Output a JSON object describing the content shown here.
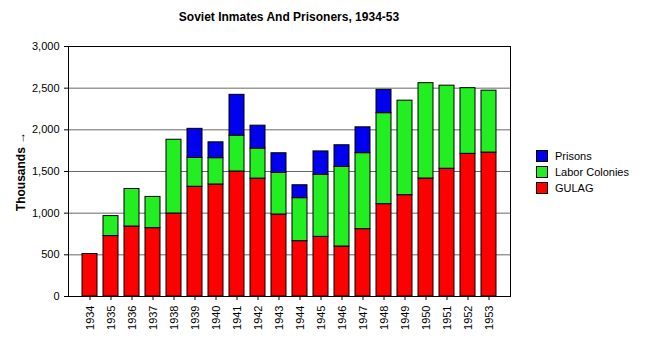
{
  "chart_data": {
    "type": "bar",
    "stacked": true,
    "title": "Soviet Inmates And Prisoners, 1934-53",
    "y_label": "Thousands",
    "categories": [
      "1934",
      "1935",
      "1936",
      "1937",
      "1938",
      "1939",
      "1940",
      "1941",
      "1942",
      "1943",
      "1944",
      "1945",
      "1946",
      "1947",
      "1948",
      "1949",
      "1950",
      "1951",
      "1952",
      "1953"
    ],
    "series": [
      {
        "name": "GULAG",
        "color": "#ff0000",
        "values": [
          510,
          725,
          840,
          820,
          996,
          1317,
          1344,
          1500,
          1415,
          984,
          664,
          716,
          600,
          808,
          1108,
          1216,
          1416,
          1533,
          1712,
          1727
        ]
      },
      {
        "name": "Labor Colonies",
        "color": "#22ee22",
        "values": [
          null,
          240,
          450,
          375,
          885,
          345,
          316,
          430,
          360,
          500,
          516,
          745,
          955,
          912,
          1092,
          1134,
          1144,
          997,
          788,
          743
        ]
      },
      {
        "name": "Prisons",
        "color": "#0000ee",
        "values": [
          null,
          null,
          null,
          null,
          null,
          350,
          190,
          490,
          275,
          235,
          155,
          280,
          260,
          310,
          280,
          null,
          null,
          null,
          null,
          null
        ]
      }
    ],
    "ylim": [
      0,
      3000
    ],
    "yticks": [
      0,
      500,
      1000,
      1500,
      2000,
      2500,
      3000
    ],
    "grid": true,
    "legend": "right"
  }
}
